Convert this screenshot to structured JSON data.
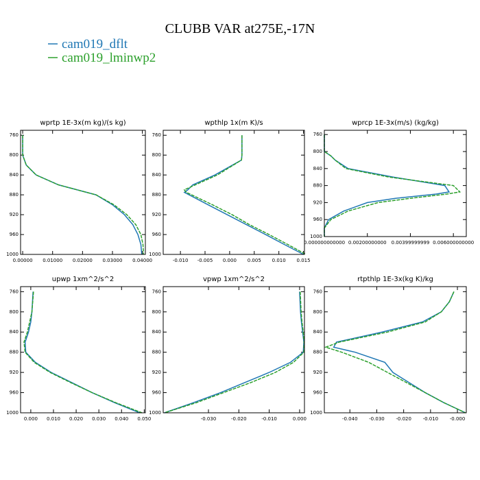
{
  "title": "CLUBB VAR at275E,-17N",
  "chart_data": [
    {
      "type": "line",
      "title": "wprtp  1E-3x(m kg)/(s kg)",
      "levels": [
        760,
        800,
        820,
        840,
        860,
        880,
        900,
        920,
        940,
        960,
        980,
        1000
      ],
      "series": [
        {
          "name": "cam019_dflt",
          "color": "#1f77b4",
          "values": [
            0,
            0,
            0.0012,
            0.0045,
            0.012,
            0.0245,
            0.03,
            0.034,
            0.0368,
            0.0385,
            0.0395,
            0.0398
          ]
        },
        {
          "name": "cam019_lminwp2",
          "color": "#2ca02c",
          "values": [
            0,
            0,
            0.0012,
            0.0045,
            0.012,
            0.0245,
            0.0305,
            0.0348,
            0.0378,
            0.0395,
            0.0402,
            0.0404
          ]
        }
      ],
      "xlim": [
        -0.0007,
        0.041
      ],
      "xticks": [
        {
          "value": 0,
          "label": "0.00000"
        },
        {
          "value": 0.01,
          "label": "0.01000"
        },
        {
          "value": 0.02,
          "label": "0.02000"
        },
        {
          "value": 0.03,
          "label": "0.03000"
        },
        {
          "value": 0.04,
          "label": "0.04000"
        }
      ],
      "ylim": [
        750,
        1000
      ],
      "yticks": [
        760,
        800,
        840,
        880,
        920,
        960,
        1000
      ],
      "invert_y": true
    },
    {
      "type": "line",
      "title": "wpthlp  1x(m K)/s",
      "levels": [
        760,
        800,
        810,
        840,
        860,
        870,
        875,
        900,
        920,
        940,
        960,
        980,
        1000
      ],
      "series": [
        {
          "name": "cam019_dflt",
          "color": "#1f77b4",
          "values": [
            0.0025,
            0.0025,
            0.0024,
            -0.003,
            -0.0075,
            -0.0085,
            -0.0092,
            -0.0044,
            -0.0005,
            0.0034,
            0.0073,
            0.0111,
            0.015
          ]
        },
        {
          "name": "cam019_lminwp2",
          "color": "#2ca02c",
          "values": [
            0.0025,
            0.0025,
            0.0024,
            -0.0025,
            -0.007,
            -0.0092,
            -0.0088,
            -0.0035,
            0.0005,
            0.004,
            0.008,
            0.0118,
            0.0155
          ]
        }
      ],
      "xlim": [
        -0.0135,
        0.0152
      ],
      "xticks": [
        {
          "value": -0.01,
          "label": "-0.010"
        },
        {
          "value": -0.005,
          "label": "-0.005"
        },
        {
          "value": 0,
          "label": "0.000"
        },
        {
          "value": 0.005,
          "label": "0.005"
        },
        {
          "value": 0.01,
          "label": "0.010"
        },
        {
          "value": 0.015,
          "label": "0.015"
        }
      ],
      "ylim": [
        750,
        1000
      ],
      "yticks": [
        760,
        800,
        840,
        880,
        920,
        960,
        1000
      ],
      "invert_y": true
    },
    {
      "type": "line",
      "title": "wprcp  1E-3x(m/s) (kg/kg)",
      "levels": [
        760,
        800,
        810,
        820,
        840,
        860,
        880,
        895,
        900,
        910,
        920,
        940,
        960,
        980,
        1000
      ],
      "series": [
        {
          "name": "cam019_dflt",
          "color": "#1f77b4",
          "values": [
            0,
            0,
            0.0003,
            0.0005,
            0.0011,
            0.0032,
            0.0056,
            0.0058,
            0.0052,
            0.0033,
            0.002,
            0.0009,
            0.0002,
            0,
            0
          ]
        },
        {
          "name": "cam019_lminwp2",
          "color": "#2ca02c",
          "values": [
            0,
            0,
            0.0003,
            0.0005,
            0.001,
            0.003,
            0.006,
            0.0063,
            0.0057,
            0.004,
            0.0025,
            0.0011,
            0.0003,
            0,
            0
          ]
        }
      ],
      "xlim": [
        0,
        0.0066
      ],
      "xticks": [
        {
          "value": 0,
          "label": "0.000000000000"
        },
        {
          "value": 0.002,
          "label": "0.00200000000"
        },
        {
          "value": 0.004,
          "label": "0.00399999999"
        },
        {
          "value": 0.006,
          "label": "0.006000000000"
        }
      ],
      "ylim": [
        750,
        1000
      ],
      "yticks": [
        760,
        800,
        840,
        880,
        920,
        960,
        1000
      ],
      "invert_y": true
    },
    {
      "type": "line",
      "title": "upwp  1xm^2/s^2",
      "levels": [
        760,
        800,
        820,
        840,
        860,
        880,
        900,
        920,
        940,
        960,
        980,
        1000
      ],
      "series": [
        {
          "name": "cam019_dflt",
          "color": "#1f77b4",
          "values": [
            0.001,
            0.0005,
            0,
            -0.001,
            -0.0025,
            -0.0022,
            0.002,
            0.009,
            0.018,
            0.027,
            0.037,
            0.048
          ]
        },
        {
          "name": "cam019_lminwp2",
          "color": "#2ca02c",
          "values": [
            0.0012,
            0.0005,
            -0.0005,
            -0.0015,
            -0.003,
            -0.0025,
            0.0015,
            0.0085,
            0.0175,
            0.027,
            0.0375,
            0.049
          ]
        }
      ],
      "xlim": [
        -0.0045,
        0.0505
      ],
      "xticks": [
        {
          "value": 0,
          "label": "0.000"
        },
        {
          "value": 0.01,
          "label": "0.010"
        },
        {
          "value": 0.02,
          "label": "0.020"
        },
        {
          "value": 0.03,
          "label": "0.030"
        },
        {
          "value": 0.04,
          "label": "0.040"
        },
        {
          "value": 0.05,
          "label": "0.050"
        }
      ],
      "ylim": [
        750,
        1000
      ],
      "yticks": [
        760,
        800,
        840,
        880,
        920,
        960,
        1000
      ],
      "invert_y": true
    },
    {
      "type": "line",
      "title": "vpwp  1xm^2/s^2",
      "levels": [
        760,
        800,
        820,
        840,
        860,
        880,
        900,
        920,
        940,
        960,
        980,
        1000
      ],
      "series": [
        {
          "name": "cam019_dflt",
          "color": "#1f77b4",
          "values": [
            0,
            0.0003,
            0.0006,
            0.001,
            0.0014,
            0.0012,
            -0.003,
            -0.01,
            -0.018,
            -0.026,
            -0.035,
            -0.0445
          ]
        },
        {
          "name": "cam019_lminwp2",
          "color": "#2ca02c",
          "values": [
            0.0002,
            0.0005,
            0.0008,
            0.0012,
            0.0015,
            0.0014,
            -0.002,
            -0.008,
            -0.016,
            -0.025,
            -0.034,
            -0.0445
          ]
        }
      ],
      "xlim": [
        -0.0449,
        0.0016
      ],
      "xticks": [
        {
          "value": -0.03,
          "label": "-0.030"
        },
        {
          "value": -0.02,
          "label": "-0.020"
        },
        {
          "value": -0.01,
          "label": "-0.010"
        },
        {
          "value": 0,
          "label": "0.000"
        }
      ],
      "ylim": [
        750,
        1000
      ],
      "yticks": [
        760,
        800,
        840,
        880,
        920,
        960,
        1000
      ],
      "invert_y": true
    },
    {
      "type": "line",
      "title": "rtpthlp  1E-3x(kg K)/kg",
      "levels": [
        760,
        780,
        800,
        820,
        840,
        860,
        870,
        880,
        900,
        920,
        940,
        960,
        980,
        1000
      ],
      "series": [
        {
          "name": "cam019_dflt",
          "color": "#1f77b4",
          "values": [
            -0.0013,
            -0.003,
            -0.006,
            -0.013,
            -0.028,
            -0.045,
            -0.046,
            -0.038,
            -0.027,
            -0.024,
            -0.018,
            -0.012,
            -0.005,
            0.003
          ]
        },
        {
          "name": "cam019_lminwp2",
          "color": "#2ca02c",
          "values": [
            -0.0013,
            -0.003,
            -0.006,
            -0.012,
            -0.026,
            -0.044,
            -0.049,
            -0.043,
            -0.033,
            -0.026,
            -0.019,
            -0.012,
            -0.005,
            0.003
          ]
        }
      ],
      "xlim": [
        -0.0495,
        0.0033
      ],
      "xticks": [
        {
          "value": -0.04,
          "label": "-0.040"
        },
        {
          "value": -0.03,
          "label": "-0.030"
        },
        {
          "value": -0.02,
          "label": "-0.020"
        },
        {
          "value": -0.01,
          "label": "-0.010"
        },
        {
          "value": 0,
          "label": "-0.000"
        }
      ],
      "ylim": [
        750,
        1000
      ],
      "yticks": [
        760,
        800,
        840,
        880,
        920,
        960,
        1000
      ],
      "invert_y": true
    }
  ]
}
